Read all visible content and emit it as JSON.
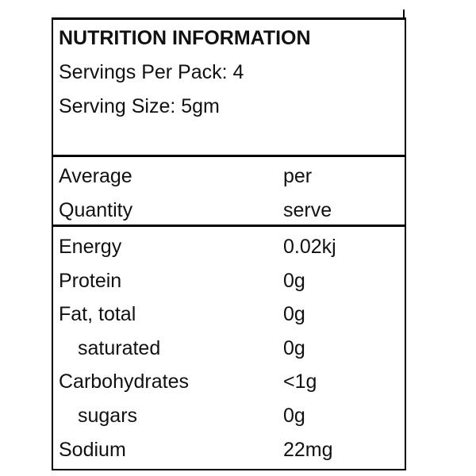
{
  "header": {
    "title": "NUTRITION INFORMATION",
    "lines": [
      "Servings Per Pack: 4",
      "Serving Size: 5gm"
    ]
  },
  "table": {
    "columns": [
      [
        "Average",
        "Quantity"
      ],
      [
        "per",
        "serve"
      ]
    ],
    "rows": [
      [
        "Energy",
        "0.02kj"
      ],
      [
        "Protein",
        "0g"
      ],
      [
        "Fat, total",
        "0g"
      ],
      [
        "saturated",
        "0g"
      ],
      [
        "Carbohydrates",
        "<1g"
      ],
      [
        "sugars",
        "0g"
      ],
      [
        "Sodium",
        "22mg"
      ]
    ]
  }
}
